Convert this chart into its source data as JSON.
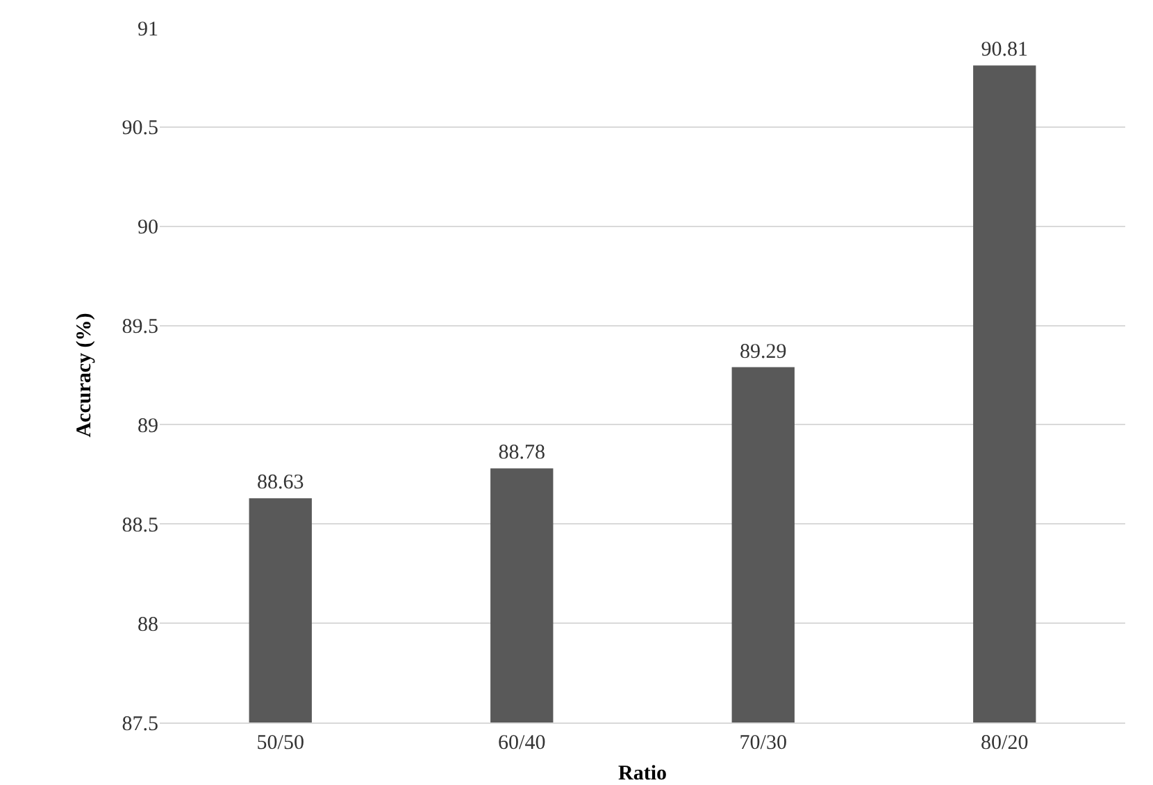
{
  "chart_data": {
    "type": "bar",
    "xlabel": "Ratio",
    "ylabel": "Accuracy (%)",
    "categories": [
      "50/50",
      "60/40",
      "70/30",
      "80/20"
    ],
    "values": [
      88.63,
      88.78,
      89.29,
      90.81
    ],
    "color": "#595959",
    "ylim": [
      87.5,
      91
    ],
    "yticks": [
      87.5,
      88,
      88.5,
      89,
      89.5,
      90,
      90.5,
      91
    ],
    "grid": "y",
    "data_labels": true
  }
}
